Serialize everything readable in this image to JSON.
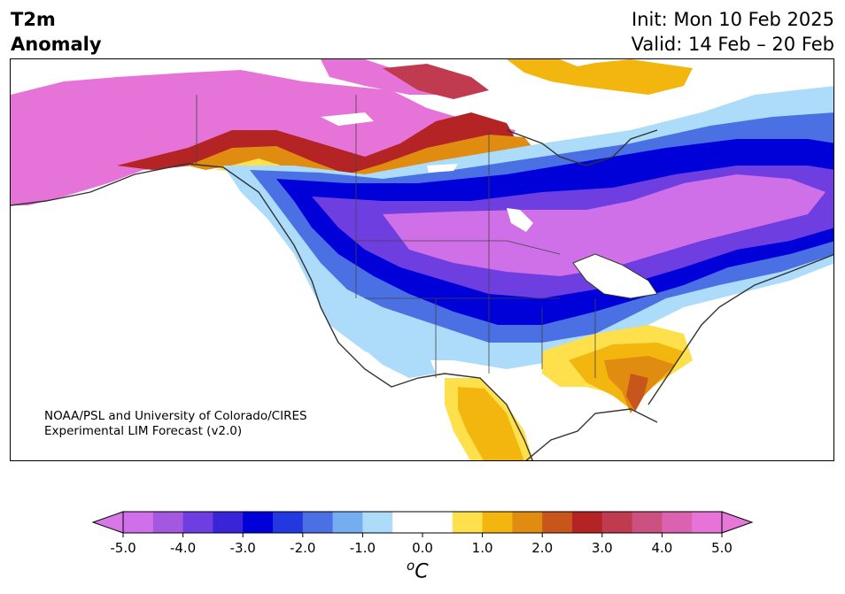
{
  "title": {
    "line1": "T2m",
    "line2": "Anomaly"
  },
  "run": {
    "init": "Init: Mon 10 Feb 2025",
    "valid": "Valid: 14 Feb – 20 Feb"
  },
  "credit": {
    "line1": "NOAA/PSL and University of Colorado/CIRES",
    "line2": "Experimental LIM Forecast (v2.0)"
  },
  "colorbar": {
    "unit": "C",
    "unit_prefix": "o",
    "tick_labels": [
      "-5.0",
      "-4.0",
      "-3.0",
      "-2.0",
      "-1.0",
      "0.0",
      "1.0",
      "2.0",
      "3.0",
      "4.0",
      "5.0"
    ],
    "colors": [
      "#d070e8",
      "#a458e0",
      "#6f3ee0",
      "#3a24d8",
      "#0000d8",
      "#2438e0",
      "#4a70e4",
      "#74aef0",
      "#acdcfa",
      "#ffffff",
      "#ffffff",
      "#fde04c",
      "#f2b60e",
      "#e08c10",
      "#c8561a",
      "#b42424",
      "#c03a50",
      "#cc5080",
      "#da62b0",
      "#e674d8"
    ],
    "under_color": "#d878e8",
    "over_color": "#e878d8"
  },
  "map": {
    "region": "North America",
    "variable": "2 m temperature anomaly"
  }
}
